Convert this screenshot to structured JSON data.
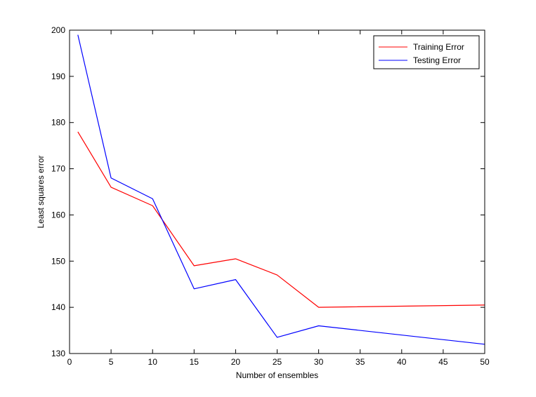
{
  "chart_data": {
    "type": "line",
    "xlabel": "Number of ensembles",
    "ylabel": "Least squares error",
    "xlim": [
      0,
      50
    ],
    "ylim": [
      130,
      200
    ],
    "xticks": [
      0,
      5,
      10,
      15,
      20,
      25,
      30,
      35,
      40,
      45,
      50
    ],
    "yticks": [
      130,
      140,
      150,
      160,
      170,
      180,
      190,
      200
    ],
    "grid": false,
    "legend_position": "top-right",
    "series": [
      {
        "name": "Training Error",
        "color": "#ff0000",
        "x": [
          1,
          5,
          10,
          15,
          20,
          25,
          30,
          50
        ],
        "y": [
          178,
          166,
          162,
          149,
          150.5,
          147,
          140,
          140.5
        ]
      },
      {
        "name": "Testing Error",
        "color": "#0000ff",
        "x": [
          1,
          5,
          10,
          15,
          20,
          25,
          30,
          50
        ],
        "y": [
          199,
          168,
          163.5,
          144,
          146,
          133.5,
          136,
          132
        ]
      }
    ]
  }
}
